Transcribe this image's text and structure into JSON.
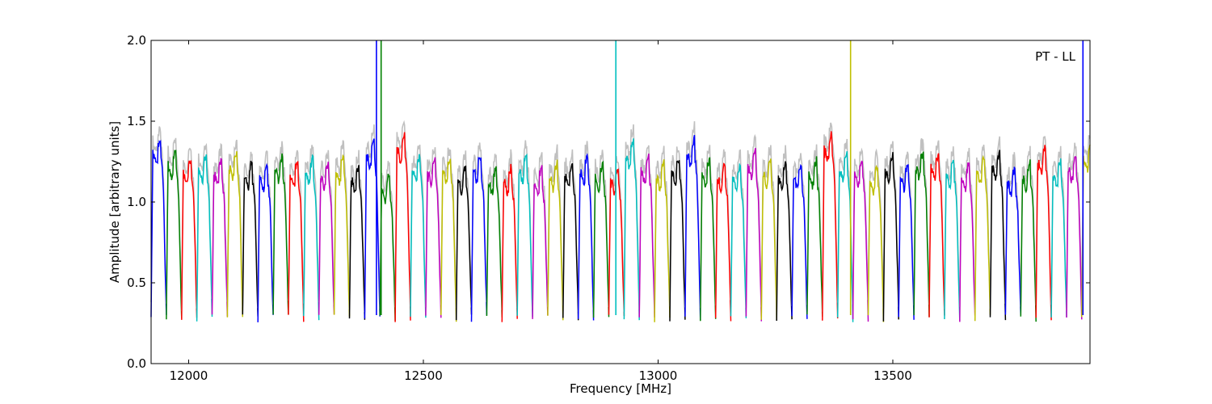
{
  "chart_data": {
    "type": "line",
    "title": "",
    "xlabel": "Frequency [MHz]",
    "ylabel": "Amplitude [arbitrary units]",
    "xlim": [
      11920,
      13920
    ],
    "ylim": [
      0.0,
      2.0
    ],
    "xticks": [
      12000,
      12500,
      13000,
      13500
    ],
    "xtick_labels": [
      "12000",
      "12500",
      "13000",
      "13500"
    ],
    "yticks": [
      0.0,
      0.5,
      1.0,
      1.5,
      2.0
    ],
    "ytick_labels": [
      "0.0",
      "0.5",
      "1.0",
      "1.5",
      "2.0"
    ],
    "grid": false,
    "legend": "none",
    "annotation": "PT - LL",
    "colors": [
      "#0000ff",
      "#008000",
      "#ff0000",
      "#00bfbf",
      "#bf00bf",
      "#bfbf00",
      "#000000"
    ],
    "background_color": "#c0c0c0",
    "band_start": 11920,
    "band_spacing": 32.5,
    "band_count": 62,
    "band_peaks": [
      1.37,
      1.3,
      1.25,
      1.27,
      1.24,
      1.29,
      1.23,
      1.22,
      1.27,
      1.24,
      1.25,
      1.22,
      1.26,
      1.21,
      1.36,
      1.15,
      1.4,
      1.27,
      1.25,
      1.26,
      1.2,
      1.27,
      1.19,
      1.2,
      1.26,
      1.19,
      1.22,
      1.23,
      1.26,
      1.22,
      1.2,
      1.35,
      1.26,
      1.22,
      1.25,
      1.37,
      1.24,
      1.22,
      1.21,
      1.29,
      1.24,
      1.22,
      1.22,
      1.24,
      1.4,
      1.27,
      1.25,
      1.2,
      1.27,
      1.22,
      1.29,
      1.28,
      1.24,
      1.22,
      1.26,
      1.28,
      1.19,
      1.22,
      1.32,
      1.24,
      1.27,
      1.34
    ],
    "spikes": [
      {
        "x": 12400,
        "color": "#0000ff"
      },
      {
        "x": 12410,
        "color": "#008000"
      },
      {
        "x": 12910,
        "color": "#00bfbf"
      },
      {
        "x": 13410,
        "color": "#bfbf00"
      },
      {
        "x": 13905,
        "color": "#0000ff"
      }
    ]
  }
}
